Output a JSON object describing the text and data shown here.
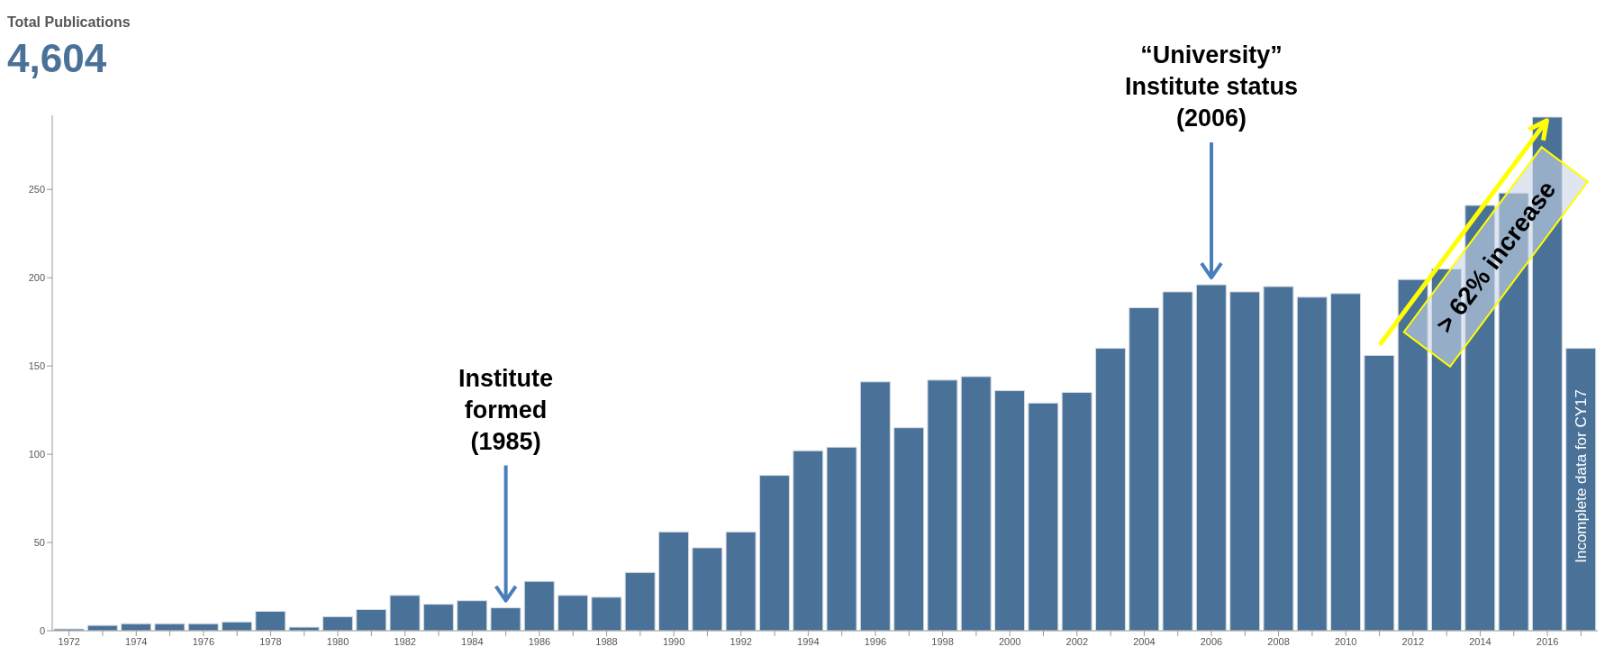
{
  "chart_data": {
    "type": "bar",
    "title": "Total Publications",
    "subtitle": "4,604",
    "categories": [
      "1972",
      null,
      "1974",
      null,
      "1976",
      null,
      "1978",
      null,
      "1980",
      null,
      "1982",
      null,
      "1984",
      null,
      "1986",
      null,
      "1988",
      null,
      "1990",
      null,
      "1992",
      null,
      "1994",
      null,
      "1996",
      null,
      "1998",
      null,
      "2000",
      null,
      "2002",
      null,
      "2004",
      null,
      "2006",
      null,
      "2008",
      null,
      "2010",
      null,
      "2012",
      null,
      "2014",
      null,
      "2016",
      null
    ],
    "values": [
      1,
      3,
      4,
      4,
      4,
      5,
      11,
      2,
      8,
      12,
      20,
      15,
      17,
      13,
      28,
      20,
      19,
      33,
      56,
      47,
      56,
      88,
      102,
      104,
      141,
      115,
      142,
      144,
      136,
      129,
      135,
      160,
      183,
      192,
      196,
      192,
      195,
      189,
      191,
      156,
      199,
      205,
      241,
      248,
      291,
      160
    ],
    "color": "#4a7298",
    "ylim": [
      0,
      292
    ],
    "yticks": [
      0,
      50,
      100,
      150,
      200,
      250
    ],
    "annotations": [
      "Institute\nformed\n(1985)",
      "“University”\nInstitute status\n(2006)",
      "> 62% increase",
      "Incomplete data for CY17"
    ]
  }
}
